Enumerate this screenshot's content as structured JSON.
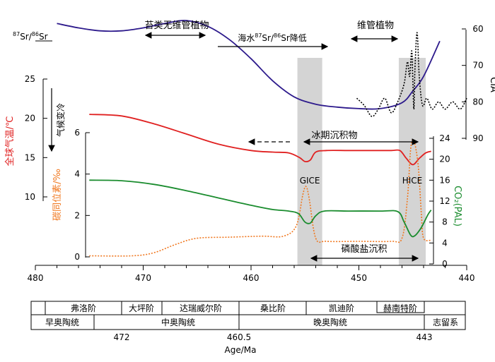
{
  "chart_data": {
    "type": "line",
    "x_axis": {
      "label": "Age/Ma",
      "range": [
        480,
        440
      ],
      "ticks": [
        480,
        470,
        460,
        450,
        440
      ]
    },
    "axes": {
      "sr": {
        "label_pre": "87",
        "label_mid": "Sr/",
        "label_sup": "86",
        "label_post": "Sr"
      },
      "cia": {
        "label": "CIA",
        "range": [
          60,
          90
        ],
        "ticks": [
          60,
          70,
          80,
          90
        ]
      },
      "temp": {
        "label": "全球气温/℃",
        "range": [
          10,
          25
        ],
        "ticks": [
          10,
          15,
          20,
          25
        ]
      },
      "carbon": {
        "label": "碳同位素/‰",
        "range": [
          0,
          6
        ],
        "ticks": [
          0,
          2,
          4,
          6
        ]
      },
      "co2": {
        "label": "CO₂(PAL)",
        "range": [
          0,
          24
        ],
        "ticks": [
          0,
          4,
          8,
          12,
          16,
          20,
          24
        ]
      }
    },
    "series": [
      {
        "name": "87Sr/86Sr",
        "color": "#2d1a8c",
        "style": "solid",
        "axis": "sr_norm",
        "x": [
          478,
          476,
          474,
          472,
          470,
          468,
          466,
          464,
          462,
          460,
          458,
          456,
          454,
          452,
          450,
          448,
          446,
          445,
          444,
          442.5
        ],
        "y": [
          0.84,
          0.81,
          0.79,
          0.79,
          0.81,
          0.84,
          0.86,
          0.82,
          0.73,
          0.6,
          0.45,
          0.34,
          0.29,
          0.27,
          0.26,
          0.26,
          0.3,
          0.38,
          0.48,
          0.72
        ]
      },
      {
        "name": "CIA",
        "color": "#000000",
        "style": "dotted",
        "axis": "cia",
        "x": [
          450.2,
          449.5,
          448.8,
          448.2,
          447.6,
          447,
          446.4,
          445.8,
          445.5,
          445.3,
          445.1,
          445,
          444.9,
          444.8,
          444.6,
          444.4,
          444.1,
          443.7,
          443.2,
          442.6,
          442,
          441.3,
          440.6,
          440
        ],
        "y": [
          79,
          81,
          84,
          82,
          79,
          83,
          80,
          75,
          69,
          73,
          66,
          74,
          82,
          71,
          61,
          73,
          81,
          79,
          82,
          80,
          82,
          80,
          82,
          79
        ]
      },
      {
        "name": "全球气温",
        "color": "#e02020",
        "style": "solid",
        "axis": "temp",
        "x": [
          475,
          472,
          469,
          466,
          463,
          460,
          458,
          456.5,
          455.5,
          455,
          454.5,
          454,
          453,
          451,
          449,
          447,
          446.2,
          445.6,
          445,
          444.4,
          443.8,
          443.3
        ],
        "y": [
          20.5,
          20.3,
          19.3,
          18.0,
          16.7,
          15.9,
          15.7,
          15.6,
          15.0,
          14.5,
          14.7,
          15.7,
          15.9,
          15.9,
          15.9,
          15.9,
          15.9,
          14.9,
          14.1,
          14.9,
          15.6,
          15.8
        ]
      },
      {
        "name": "碳同位素",
        "color": "#f07820",
        "style": "dotted",
        "axis": "carbon",
        "x": [
          475,
          471,
          469,
          467,
          465,
          462,
          459,
          457,
          455.8,
          455.2,
          454.9,
          454.6,
          454,
          453,
          450,
          447,
          446,
          445.5,
          445.2,
          444.9,
          444.5,
          444.2,
          444,
          443.3
        ],
        "y": [
          0.05,
          0.05,
          0.2,
          0.6,
          0.9,
          0.95,
          1.0,
          1.0,
          1.5,
          3.0,
          3.4,
          2.8,
          0.9,
          0.75,
          0.75,
          0.75,
          0.9,
          2.8,
          5.2,
          5.6,
          4.4,
          2.0,
          0.9,
          0.8
        ]
      },
      {
        "name": "CO₂",
        "color": "#1a8c2e",
        "style": "solid",
        "axis": "co2",
        "x": [
          475,
          472,
          469,
          466,
          463,
          460,
          458,
          456.5,
          455.6,
          455,
          454.5,
          454,
          453.2,
          451,
          448,
          446.4,
          445.8,
          445.2,
          444.8,
          444.2,
          443.6,
          443.3
        ],
        "y": [
          16,
          15.9,
          15.2,
          14.0,
          12.6,
          11.2,
          10.4,
          10.1,
          9.6,
          8.0,
          7.8,
          9.2,
          10.1,
          10.1,
          10.1,
          10.0,
          8.0,
          5.5,
          5.4,
          7.0,
          9.4,
          10.3
        ]
      }
    ],
    "bands": [
      {
        "x": [
          455.7,
          453.4
        ],
        "label": "GICE"
      },
      {
        "x": [
          446.3,
          443.8
        ],
        "label": "HICE"
      }
    ],
    "annotations": {
      "bryophyte": "苔类无维管植物",
      "seawater_pre": "海水",
      "seawater_sup1": "87",
      "seawater_mid": "Sr/",
      "seawater_sup2": "86",
      "seawater_post": "Sr降低",
      "vascular": "维管植物",
      "cooling": "气候变冷",
      "glacial": "冰期沉积物",
      "phosphate": "磷酸盐沉积"
    },
    "stratigraphy": {
      "stages": [
        "弗洛阶",
        "大坪阶",
        "达瑞威尔阶",
        "桑比阶",
        "凯迪阶",
        "赫南特阶"
      ],
      "series": [
        "早奥陶统",
        "中奥陶统",
        "晚奥陶统",
        "志留系"
      ],
      "boundaries": [
        "472",
        "460.5",
        "443"
      ]
    }
  }
}
